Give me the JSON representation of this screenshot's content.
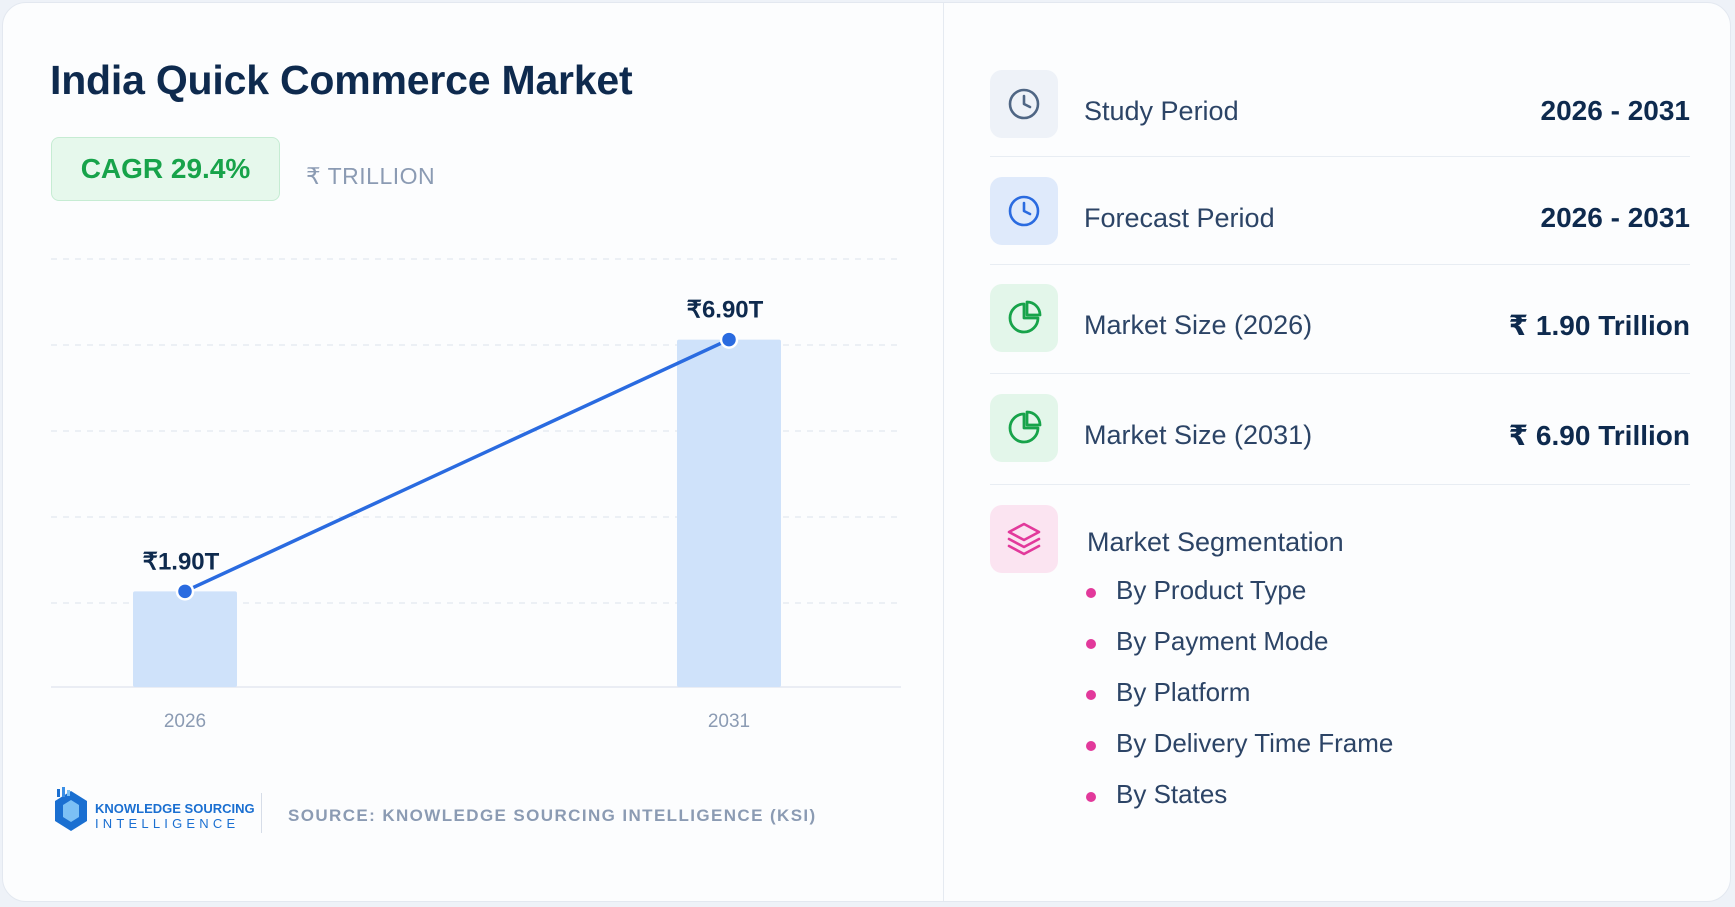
{
  "title": "India Quick Commerce Market",
  "cagr": "CAGR 29.4%",
  "unit": "₹ TRILLION",
  "colors": {
    "bar": "#cfe2fa",
    "line": "#2a6be0",
    "accent_green": "#17a34a",
    "accent_pink": "#e2399b",
    "text_dark": "#0e2a4e"
  },
  "chart_data": {
    "type": "bar",
    "categories": [
      "2026",
      "2031"
    ],
    "values": [
      1.9,
      6.9
    ],
    "data_labels": [
      "₹1.90T",
      "₹6.90T"
    ],
    "overlay": "line connecting bar tops",
    "ylim": [
      0,
      8.5
    ],
    "grid": true,
    "title": "India Quick Commerce Market",
    "xlabel": "",
    "ylabel": ""
  },
  "footer": {
    "logo_line1": "KNOWLEDGE SOURCING",
    "logo_line2": "INTELLIGENCE",
    "source": "SOURCE: KNOWLEDGE SOURCING INTELLIGENCE (KSI)"
  },
  "stats": [
    {
      "icon": "clock-icon",
      "label": "Study Period",
      "value": "2026 - 2031"
    },
    {
      "icon": "clock-icon",
      "label": "Forecast Period",
      "value": "2026 - 2031"
    },
    {
      "icon": "pie-chart-icon",
      "label": "Market Size (2026)",
      "value": "₹ 1.90 Trillion"
    },
    {
      "icon": "pie-chart-icon",
      "label": "Market Size (2031)",
      "value": "₹ 6.90 Trillion"
    }
  ],
  "segmentation": {
    "icon": "layers-icon",
    "title": "Market Segmentation",
    "items": [
      "By Product Type",
      "By Payment Mode",
      "By Platform",
      "By Delivery Time Frame",
      "By States"
    ]
  }
}
